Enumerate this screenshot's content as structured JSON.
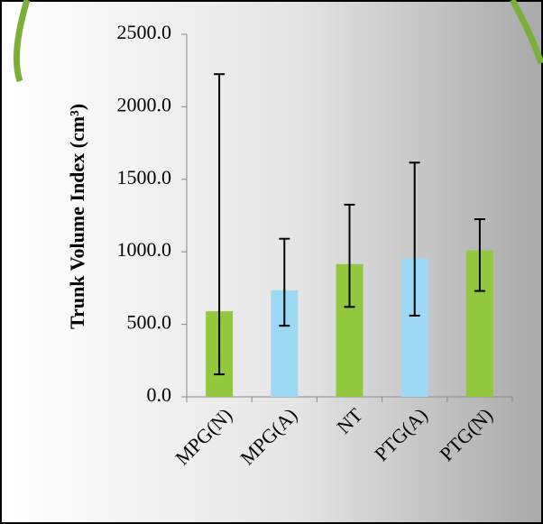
{
  "chart_data": {
    "type": "bar",
    "y_label": "Trunk Volume Index (cm³)",
    "categories": [
      "MPG(N)",
      "MPG(A)",
      "NT",
      "PTG(A)",
      "PTG(N)"
    ],
    "values": [
      590,
      735,
      915,
      955,
      1010
    ],
    "error_minus": [
      435,
      245,
      295,
      395,
      280
    ],
    "error_plus": [
      1635,
      355,
      410,
      660,
      215
    ],
    "colors": [
      "#92c83e",
      "#9dd8f5",
      "#92c83e",
      "#9dd8f5",
      "#92c83e"
    ],
    "ylim": [
      0,
      2500
    ],
    "yticks": [
      {
        "value": 0,
        "label": "0.0"
      },
      {
        "value": 500,
        "label": "500.0"
      },
      {
        "value": 1000,
        "label": "1000.0"
      },
      {
        "value": 1500,
        "label": "1500.0"
      },
      {
        "value": 2000,
        "label": "2000.0"
      },
      {
        "value": 2500,
        "label": "2500.0"
      }
    ],
    "grid": false
  }
}
